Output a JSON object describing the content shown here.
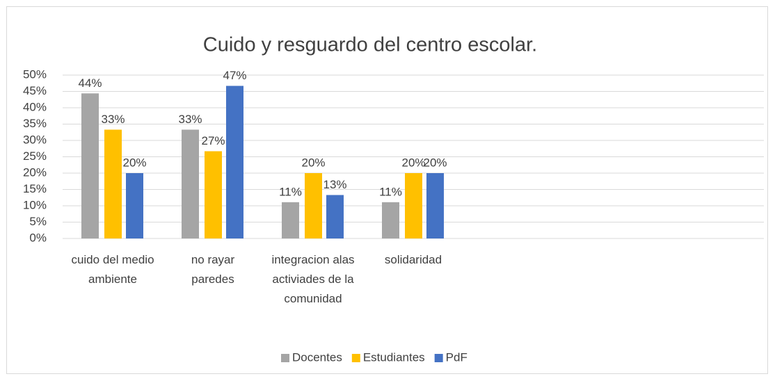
{
  "chart_data": {
    "type": "bar",
    "title": "Cuido y resguardo del centro escolar.",
    "categories": [
      "cuido del medio ambiente",
      "no rayar paredes",
      "integracion alas activiades de la comunidad",
      "solidaridad",
      null,
      null,
      null
    ],
    "series": [
      {
        "name": "Docentes",
        "color": "#a5a5a5",
        "values": [
          44.4,
          33.3,
          11.1,
          11.1,
          null,
          null,
          null
        ],
        "value_labels": [
          "44%",
          "33%",
          "11%",
          "11%",
          null,
          null,
          null
        ]
      },
      {
        "name": "Estudiantes",
        "color": "#ffc000",
        "values": [
          33.3,
          26.7,
          20,
          20,
          null,
          null,
          null
        ],
        "value_labels": [
          "33%",
          "27%",
          "20%",
          "20%",
          null,
          null,
          null
        ]
      },
      {
        "name": "PdF",
        "color": "#4472c4",
        "values": [
          20,
          46.7,
          13.3,
          20,
          null,
          null,
          null
        ],
        "value_labels": [
          "20%",
          "47%",
          "13%",
          "20%",
          null,
          null,
          null
        ]
      }
    ],
    "ylim": [
      0,
      50
    ],
    "yticks": [
      {
        "value": 0,
        "label": "0%"
      },
      {
        "value": 5,
        "label": "5%"
      },
      {
        "value": 10,
        "label": "10%"
      },
      {
        "value": 15,
        "label": "15%"
      },
      {
        "value": 20,
        "label": "20%"
      },
      {
        "value": 25,
        "label": "25%"
      },
      {
        "value": 30,
        "label": "30%"
      },
      {
        "value": 35,
        "label": "35%"
      },
      {
        "value": 40,
        "label": "40%"
      },
      {
        "value": 45,
        "label": "45%"
      },
      {
        "value": 50,
        "label": "50%"
      }
    ],
    "grid": true,
    "legend": "bottom"
  }
}
